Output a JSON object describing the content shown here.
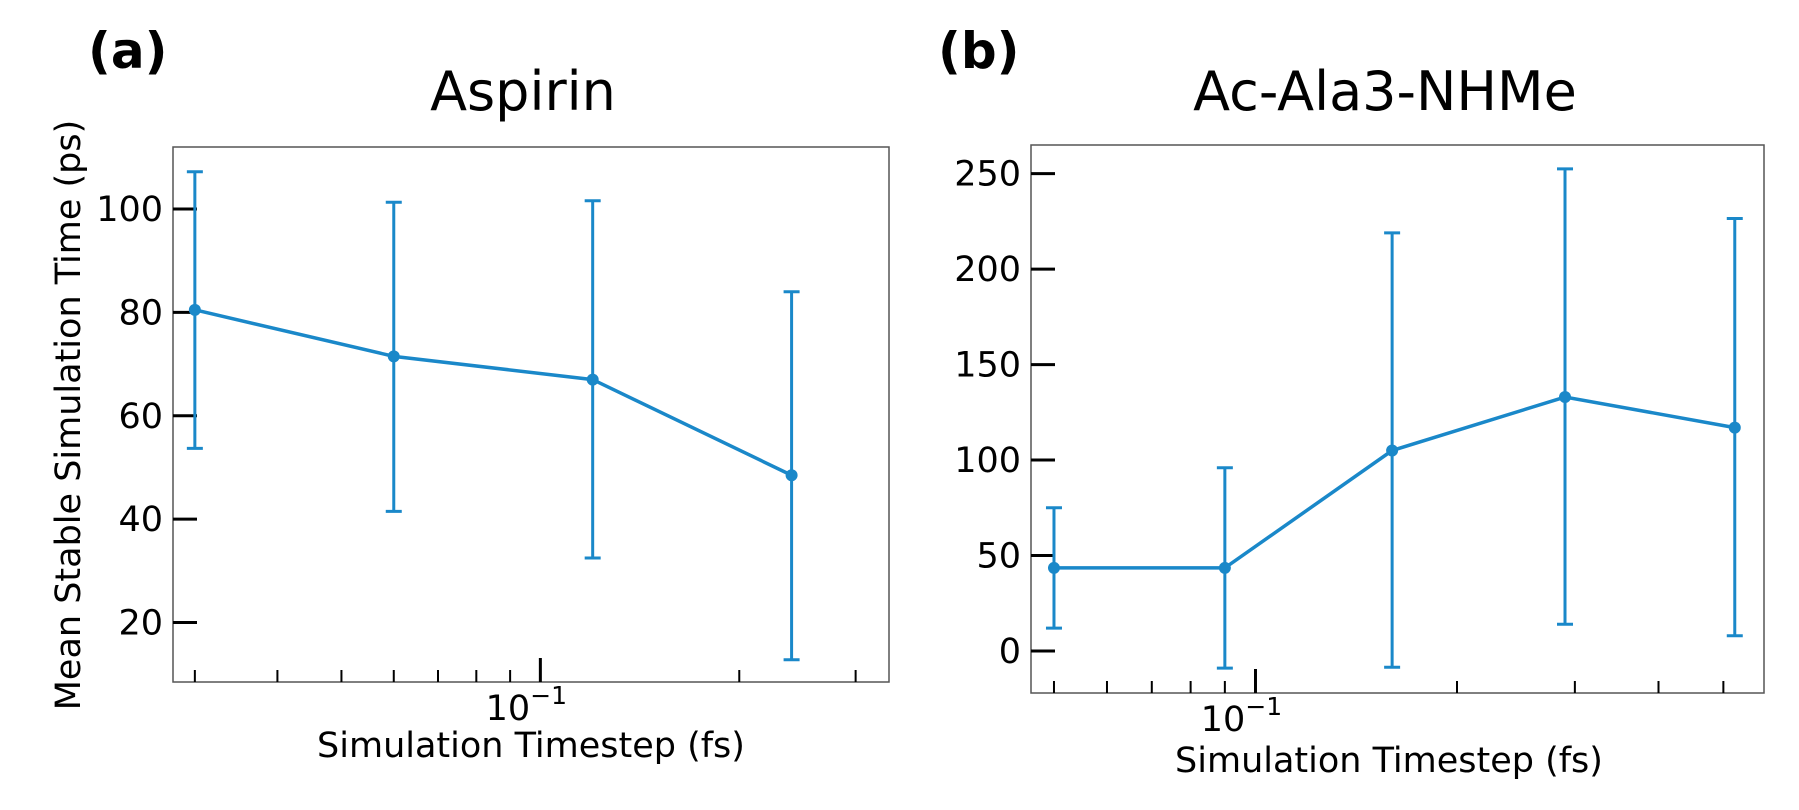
{
  "colors": {
    "series": "#1a88c9",
    "axes": "#000000",
    "frame": "#555555"
  },
  "chart_data": [
    {
      "type": "line",
      "panel_label": "(a)",
      "title": "Aspirin",
      "xlabel": "Simulation Timestep (fs)",
      "ylabel": "Mean Stable Simulation Time (ps)",
      "xscale": "log",
      "xlim": [
        0.0278,
        0.337
      ],
      "ylim": [
        8.5,
        112
      ],
      "y_ticks": [
        20,
        40,
        60,
        80,
        100
      ],
      "x_major_ticks": [
        0.1
      ],
      "x_major_tick_labels": [
        "10−1"
      ],
      "x_minor_ticks": [
        0.03,
        0.04,
        0.05,
        0.06,
        0.07,
        0.08,
        0.09,
        0.2,
        0.3
      ],
      "grid": false,
      "series": [
        {
          "x": [
            0.03,
            0.06,
            0.12,
            0.24
          ],
          "y": [
            80.5,
            71.5,
            67.0,
            48.5
          ],
          "err_low": [
            53.7,
            41.5,
            32.5,
            12.8
          ],
          "err_high": [
            107.2,
            101.3,
            101.6,
            84.0
          ]
        }
      ]
    },
    {
      "type": "line",
      "panel_label": "(b)",
      "title": "Ac-Ala3-NHMe",
      "xlabel": "Simulation Timestep (fs)",
      "ylabel": "",
      "xscale": "log",
      "xlim": [
        0.0462,
        0.575
      ],
      "ylim": [
        -22,
        265
      ],
      "y_ticks": [
        0,
        50,
        100,
        150,
        200,
        250
      ],
      "x_major_ticks": [
        0.1
      ],
      "x_major_tick_labels": [
        "10−1"
      ],
      "x_minor_ticks": [
        0.05,
        0.06,
        0.07,
        0.08,
        0.09,
        0.2,
        0.3,
        0.4,
        0.5
      ],
      "grid": false,
      "series": [
        {
          "x": [
            0.05,
            0.09,
            0.16,
            0.29,
            0.52
          ],
          "y": [
            43.5,
            43.5,
            105.0,
            133.0,
            117.0
          ],
          "err_low": [
            12.0,
            -9.0,
            -8.5,
            14.0,
            8.0
          ],
          "err_high": [
            75.0,
            96.0,
            219.0,
            252.5,
            226.5
          ]
        }
      ]
    }
  ]
}
